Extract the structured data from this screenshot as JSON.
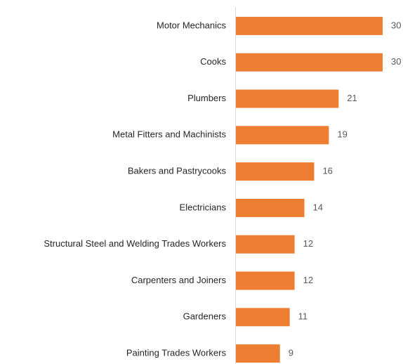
{
  "chart_data": {
    "type": "barh",
    "categories": [
      "Motor Mechanics",
      "Cooks",
      "Plumbers",
      "Metal Fitters and Machinists",
      "Bakers and Pastrycooks",
      "Electricians",
      "Structural Steel and Welding Trades Workers",
      "Carpenters and Joiners",
      "Gardeners",
      "Painting Trades Workers"
    ],
    "values": [
      30,
      30,
      21,
      19,
      16,
      14,
      12,
      12,
      11,
      9
    ],
    "color": "#ed7d31"
  }
}
